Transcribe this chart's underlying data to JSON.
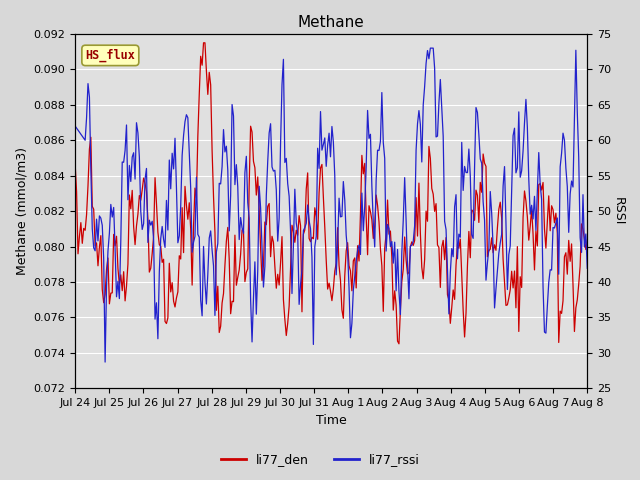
{
  "title": "Methane",
  "ylabel_left": "Methane (mmol/m3)",
  "ylabel_right": "RSSI",
  "xlabel": "Time",
  "ylim_left": [
    0.072,
    0.092
  ],
  "ylim_right": [
    25,
    75
  ],
  "yticks_left": [
    0.072,
    0.074,
    0.076,
    0.078,
    0.08,
    0.082,
    0.084,
    0.086,
    0.088,
    0.09,
    0.092
  ],
  "yticks_right": [
    25,
    30,
    35,
    40,
    45,
    50,
    55,
    60,
    65,
    70,
    75
  ],
  "xtick_labels": [
    "Jul 24",
    "Jul 25",
    "Jul 26",
    "Jul 27",
    "Jul 28",
    "Jul 29",
    "Jul 30",
    "Jul 31",
    "Aug 1",
    "Aug 2",
    "Aug 3",
    "Aug 4",
    "Aug 5",
    "Aug 6",
    "Aug 7",
    "Aug 8"
  ],
  "color_red": "#cc0000",
  "color_blue": "#2222cc",
  "legend_label_red": "li77_den",
  "legend_label_blue": "li77_rssi",
  "annotation_text": "HS_flux",
  "bg_color": "#e0e0e0",
  "grid_color": "#ffffff",
  "title_fontsize": 11,
  "axis_fontsize": 9,
  "tick_fontsize": 8
}
